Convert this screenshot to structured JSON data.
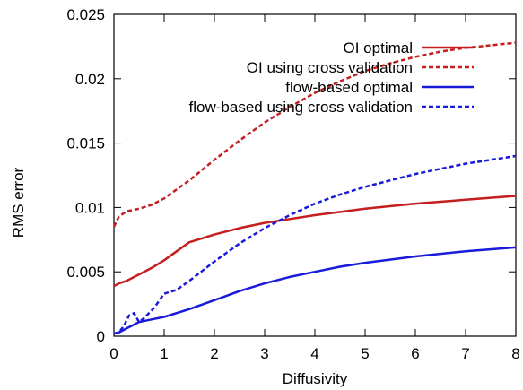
{
  "chart_data": {
    "type": "line",
    "title": "",
    "xlabel": "Diffusivity",
    "ylabel": "RMS error",
    "xlim": [
      0,
      8
    ],
    "ylim": [
      0,
      0.025
    ],
    "xticks": [
      0,
      1,
      2,
      3,
      4,
      5,
      6,
      7,
      8
    ],
    "yticks": [
      0,
      0.005,
      0.01,
      0.015,
      0.02,
      0.025
    ],
    "xtick_labels": [
      "0",
      "1",
      "2",
      "3",
      "4",
      "5",
      "6",
      "7",
      "8"
    ],
    "ytick_labels": [
      "0",
      "0.005",
      "0.01",
      "0.015",
      "0.02",
      "0.025"
    ],
    "grid": false,
    "legend_position": "top-right",
    "series": [
      {
        "name": "OI optimal",
        "color": "#c41e1e",
        "dash": "solid",
        "x": [
          0,
          0.1,
          0.25,
          0.5,
          0.75,
          1.0,
          1.25,
          1.5,
          1.75,
          2,
          2.5,
          3,
          3.5,
          4,
          5,
          6,
          7,
          8
        ],
        "y": [
          0.0039,
          0.0041,
          0.0043,
          0.0048,
          0.0053,
          0.0059,
          0.0066,
          0.0073,
          0.0076,
          0.0079,
          0.0084,
          0.0088,
          0.0091,
          0.0094,
          0.0099,
          0.0103,
          0.0106,
          0.0109
        ]
      },
      {
        "name": "OI using cross validation",
        "color": "#c41e1e",
        "dash": "dashed",
        "x": [
          0,
          0.1,
          0.25,
          0.5,
          0.75,
          1.0,
          1.5,
          2,
          2.5,
          3,
          3.5,
          4,
          4.5,
          5,
          5.5,
          6,
          6.5,
          7,
          7.5,
          8
        ],
        "y": [
          0.0085,
          0.0093,
          0.0097,
          0.0099,
          0.0102,
          0.0107,
          0.0121,
          0.0137,
          0.0152,
          0.0166,
          0.0178,
          0.0189,
          0.0198,
          0.0206,
          0.0212,
          0.0217,
          0.0221,
          0.0224,
          0.0226,
          0.0228
        ]
      },
      {
        "name": "flow-based optimal",
        "color": "#1a1adb",
        "dash": "solid",
        "x": [
          0,
          0.1,
          0.25,
          0.5,
          0.75,
          1.0,
          1.5,
          2,
          2.5,
          3,
          3.5,
          4,
          4.5,
          5,
          6,
          7,
          8
        ],
        "y": [
          0.0002,
          0.0003,
          0.0006,
          0.0011,
          0.0013,
          0.0015,
          0.0021,
          0.0028,
          0.0035,
          0.0041,
          0.0046,
          0.005,
          0.0054,
          0.0057,
          0.0062,
          0.0066,
          0.0069
        ]
      },
      {
        "name": "flow-based using cross validation",
        "color": "#1a1adb",
        "dash": "dashed",
        "x": [
          0,
          0.1,
          0.2,
          0.3,
          0.4,
          0.5,
          0.6,
          0.8,
          1.0,
          1.25,
          1.5,
          2,
          2.5,
          3,
          3.5,
          4,
          4.5,
          5,
          5.5,
          6,
          6.5,
          7,
          7.5,
          8
        ],
        "y": [
          0.0002,
          0.0003,
          0.0008,
          0.0016,
          0.0018,
          0.0011,
          0.0014,
          0.0022,
          0.0033,
          0.0036,
          0.0043,
          0.0058,
          0.0072,
          0.0084,
          0.0094,
          0.0103,
          0.011,
          0.0116,
          0.0121,
          0.0126,
          0.013,
          0.0134,
          0.0137,
          0.014
        ]
      }
    ]
  }
}
